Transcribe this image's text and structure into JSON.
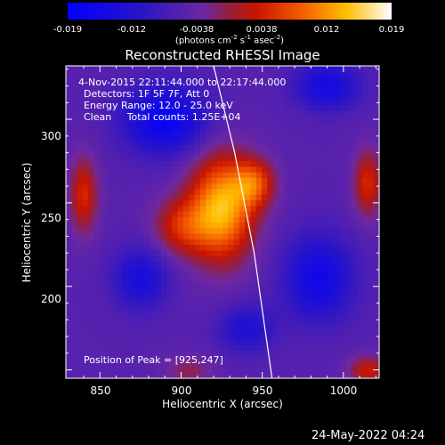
{
  "chart_data": {
    "type": "heatmap",
    "title": "Reconstructed RHESSI Image",
    "xlabel": "Heliocentric X (arcsec)",
    "ylabel": "Heliocentric Y (arcsec)",
    "xlim": [
      829,
      1022
    ],
    "ylim": [
      145,
      332
    ],
    "xticks": [
      "850",
      "900",
      "950",
      "1000"
    ],
    "yticks": [
      "200",
      "250",
      "300"
    ],
    "colorbar": {
      "ticks": [
        "-0.019",
        "-0.012",
        "-0.0038",
        "0.0038",
        "0.012",
        "0.019"
      ],
      "unit": "(photons cm",
      "unit_sup1": "-2",
      "unit_mid": " s",
      "unit_sup2": "-1",
      "unit_mid2": " asec",
      "unit_sup3": "-2",
      "unit_end": ")",
      "range": [
        -0.019,
        0.019
      ]
    },
    "annotations": {
      "time_range": "4-Nov-2015 22:11:44.000 to 22:17:44.000",
      "detectors": "Detectors: 1F 5F 7F, Att 0",
      "energy": "Energy Range: 12.0 - 25.0 keV",
      "clean": "Clean     Total counts: 1.25E+04",
      "peak": "Position of Peak = [925,247]"
    },
    "peak_position": [
      925,
      247
    ],
    "footer_date": "24-May-2022 04:24",
    "colors": {
      "background": "#000000",
      "text": "#ffffff",
      "limb": "#ffffff"
    },
    "sources": [
      {
        "x": 925,
        "y": 247,
        "amp": 0.019,
        "sx": 14,
        "sy": 22
      },
      {
        "x": 945,
        "y": 262,
        "amp": 0.011,
        "sx": 9,
        "sy": 10
      },
      {
        "x": 900,
        "y": 236,
        "amp": 0.009,
        "sx": 12,
        "sy": 12
      },
      {
        "x": 890,
        "y": 300,
        "amp": -0.012,
        "sx": 18,
        "sy": 14
      },
      {
        "x": 875,
        "y": 205,
        "amp": -0.008,
        "sx": 12,
        "sy": 13
      },
      {
        "x": 985,
        "y": 205,
        "amp": -0.01,
        "sx": 15,
        "sy": 18
      },
      {
        "x": 940,
        "y": 175,
        "amp": -0.007,
        "sx": 12,
        "sy": 10
      },
      {
        "x": 990,
        "y": 320,
        "amp": -0.009,
        "sx": 14,
        "sy": 10
      },
      {
        "x": 840,
        "y": 255,
        "amp": 0.01,
        "sx": 6,
        "sy": 16
      },
      {
        "x": 1015,
        "y": 262,
        "amp": 0.01,
        "sx": 6,
        "sy": 14
      },
      {
        "x": 1015,
        "y": 150,
        "amp": 0.009,
        "sx": 8,
        "sy": 6
      },
      {
        "x": 905,
        "y": 150,
        "amp": 0.005,
        "sx": 10,
        "sy": 6
      }
    ],
    "limb_arc": [
      [
        920,
        332
      ],
      [
        933,
        280
      ],
      [
        945,
        220
      ],
      [
        956,
        145
      ]
    ],
    "baseline": -0.0055
  }
}
